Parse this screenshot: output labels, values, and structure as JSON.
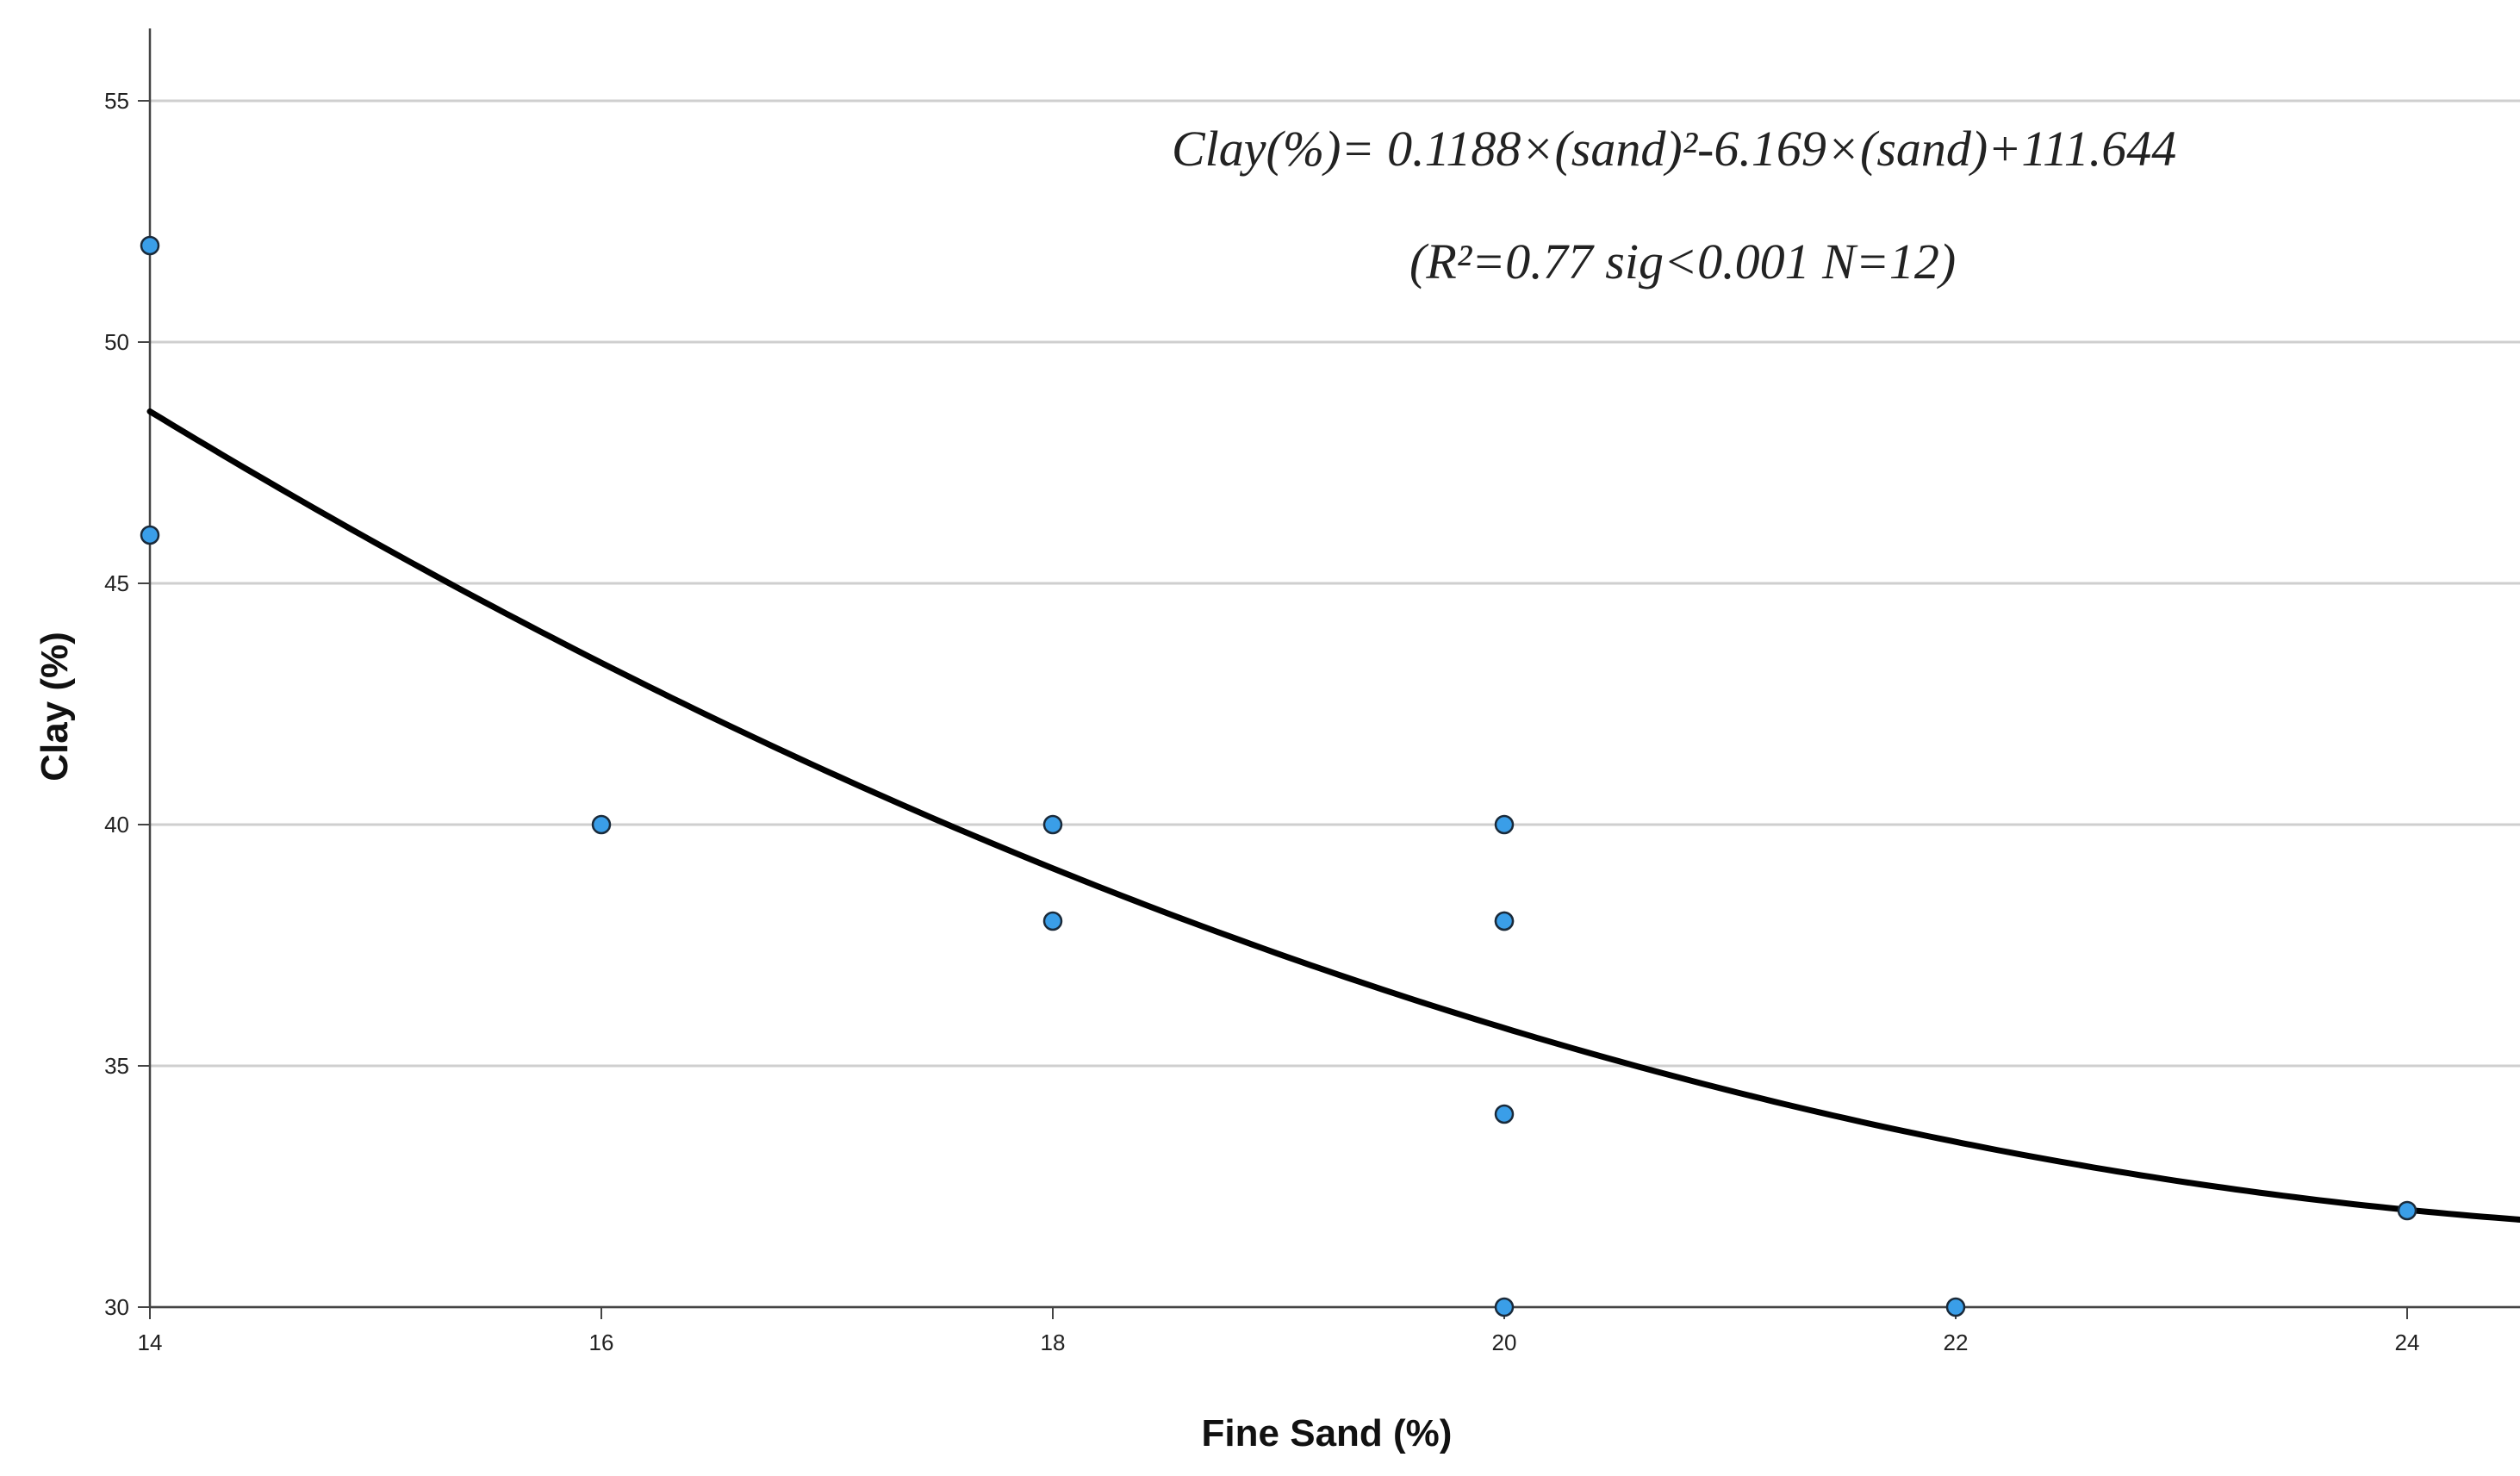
{
  "chart_data": {
    "type": "scatter",
    "xlabel": "Fine Sand (%)",
    "ylabel": "Clay (%)",
    "xlim": [
      14,
      24.5
    ],
    "ylim": [
      30,
      56.5
    ],
    "x_ticks": [
      "14",
      "16",
      "18",
      "20",
      "22",
      "24"
    ],
    "y_ticks": [
      "30",
      "35",
      "40",
      "45",
      "50",
      "55"
    ],
    "grid": "horizontal",
    "series": [
      {
        "points": [
          {
            "x": 14,
            "y": 52
          },
          {
            "x": 14,
            "y": 46
          },
          {
            "x": 16,
            "y": 40
          },
          {
            "x": 18,
            "y": 40
          },
          {
            "x": 18,
            "y": 38
          },
          {
            "x": 20,
            "y": 40
          },
          {
            "x": 20,
            "y": 38
          },
          {
            "x": 20,
            "y": 38
          },
          {
            "x": 20,
            "y": 34
          },
          {
            "x": 20,
            "y": 30
          },
          {
            "x": 22,
            "y": 30
          },
          {
            "x": 24,
            "y": 32
          }
        ],
        "marker_color": "#3a9ee8",
        "marker_edge": "#1a2a3a"
      }
    ],
    "fit": {
      "kind": "quadratic",
      "coefficients": {
        "a": 0.1188,
        "b": -6.169,
        "c": 111.644
      },
      "color": "#000000"
    },
    "annotations": [
      "Clay(%)= 0.1188×(sand)²-6.169×(sand)+111.644",
      "(R²=0.77   sig<0.001   N=12)"
    ]
  }
}
